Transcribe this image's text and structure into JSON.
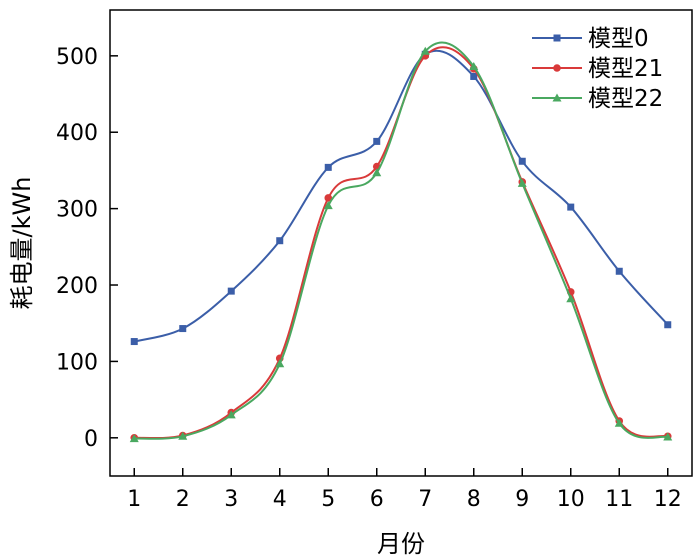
{
  "chart_data": {
    "type": "line",
    "xlabel": "月份",
    "ylabel": "耗电量/kWh",
    "x": [
      1,
      2,
      3,
      4,
      5,
      6,
      7,
      8,
      9,
      10,
      11,
      12
    ],
    "xlim": [
      0.5,
      12.5
    ],
    "ylim": [
      -50,
      560
    ],
    "yticks": [
      0,
      100,
      200,
      300,
      400,
      500
    ],
    "grid": false,
    "legend_position": "top-right",
    "series": [
      {
        "name": "模型0",
        "color": "#3b5ea8",
        "marker": "square",
        "values": [
          126,
          143,
          192,
          258,
          354,
          388,
          502,
          473,
          362,
          302,
          218,
          148
        ]
      },
      {
        "name": "模型21",
        "color": "#d93a3a",
        "marker": "circle",
        "values": [
          0,
          3,
          33,
          104,
          314,
          355,
          500,
          483,
          335,
          191,
          22,
          2
        ]
      },
      {
        "name": "模型22",
        "color": "#4aa860",
        "marker": "triangle",
        "values": [
          -1,
          2,
          30,
          97,
          304,
          347,
          506,
          486,
          333,
          182,
          19,
          1
        ]
      }
    ]
  }
}
